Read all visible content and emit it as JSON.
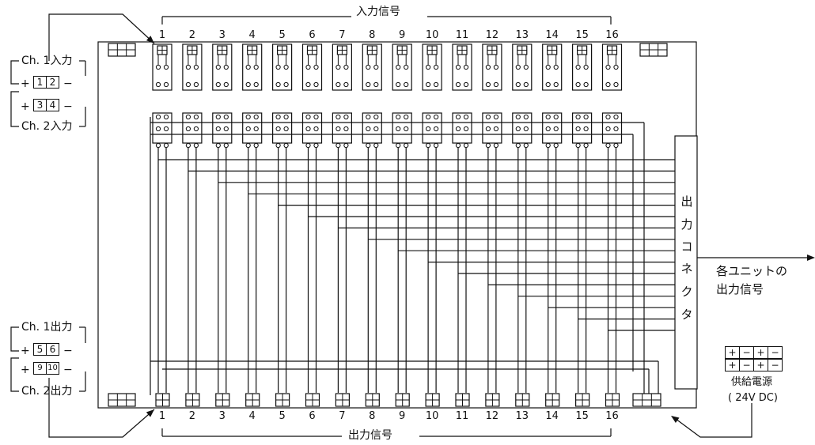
{
  "title_top": "入力信号",
  "title_bottom": "出力信号",
  "channel_numbers": [
    "1",
    "2",
    "3",
    "4",
    "5",
    "6",
    "7",
    "8",
    "9",
    "10",
    "11",
    "12",
    "13",
    "14",
    "15",
    "16"
  ],
  "left_panel": {
    "ch1_in": "Ch. 1入力",
    "ch2_in": "Ch. 2入力",
    "ch1_out": "Ch. 1出力",
    "ch2_out": "Ch. 2出力",
    "plus": "+",
    "minus": "−",
    "in_terms_row1": [
      "1",
      "2"
    ],
    "in_terms_row2": [
      "3",
      "4"
    ],
    "out_terms_row1": [
      "5",
      "6"
    ],
    "out_terms_row2": [
      "9",
      "10"
    ]
  },
  "connector_chars": [
    "出",
    "力",
    "コ",
    "ネ",
    "ク",
    "タ"
  ],
  "output_note_line1": "各ユニットの",
  "output_note_line2": "出力信号",
  "power": {
    "row1": [
      "+",
      "−",
      "+",
      "−"
    ],
    "row2": [
      "+",
      "−",
      "+",
      "−"
    ],
    "label": "供給電源",
    "voltage": "( 24V DC)"
  }
}
